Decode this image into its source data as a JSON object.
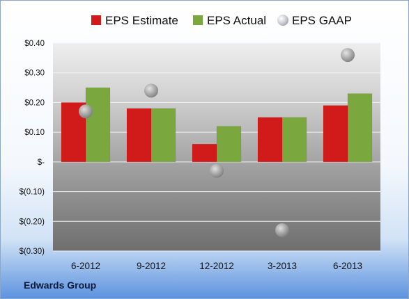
{
  "company": "Edwards Group",
  "colors": {
    "estimate": "#d11a1a",
    "actual": "#7aa83e",
    "gaap": "#a9a9a9"
  },
  "legend": [
    {
      "label": "EPS Estimate",
      "color": "#d11a1a",
      "shape": "square"
    },
    {
      "label": "EPS Actual",
      "color": "#7aa83e",
      "shape": "square"
    },
    {
      "label": "EPS GAAP",
      "color": "#b8bcc4",
      "shape": "circle"
    }
  ],
  "chart_data": {
    "type": "bar",
    "categories": [
      "6-2012",
      "9-2012",
      "12-2012",
      "3-2013",
      "6-2013"
    ],
    "series": [
      {
        "name": "EPS Estimate",
        "type": "bar",
        "values": [
          0.2,
          0.18,
          0.06,
          0.15,
          0.19
        ]
      },
      {
        "name": "EPS Actual",
        "type": "bar",
        "values": [
          0.25,
          0.18,
          0.12,
          0.15,
          0.23
        ]
      },
      {
        "name": "EPS GAAP",
        "type": "scatter",
        "values": [
          0.17,
          0.24,
          -0.03,
          -0.23,
          0.36
        ]
      }
    ],
    "ylim": [
      -0.3,
      0.4
    ],
    "yticks": [
      0.4,
      0.3,
      0.2,
      0.1,
      0.0,
      -0.1,
      -0.2,
      -0.3
    ],
    "ytick_labels": [
      "$0.40",
      "$0.30",
      "$0.20",
      "$0.10",
      "$-",
      "$(0.10)",
      "$(0.20)",
      "$(0.30)"
    ],
    "grid": true,
    "legend_position": "top"
  }
}
